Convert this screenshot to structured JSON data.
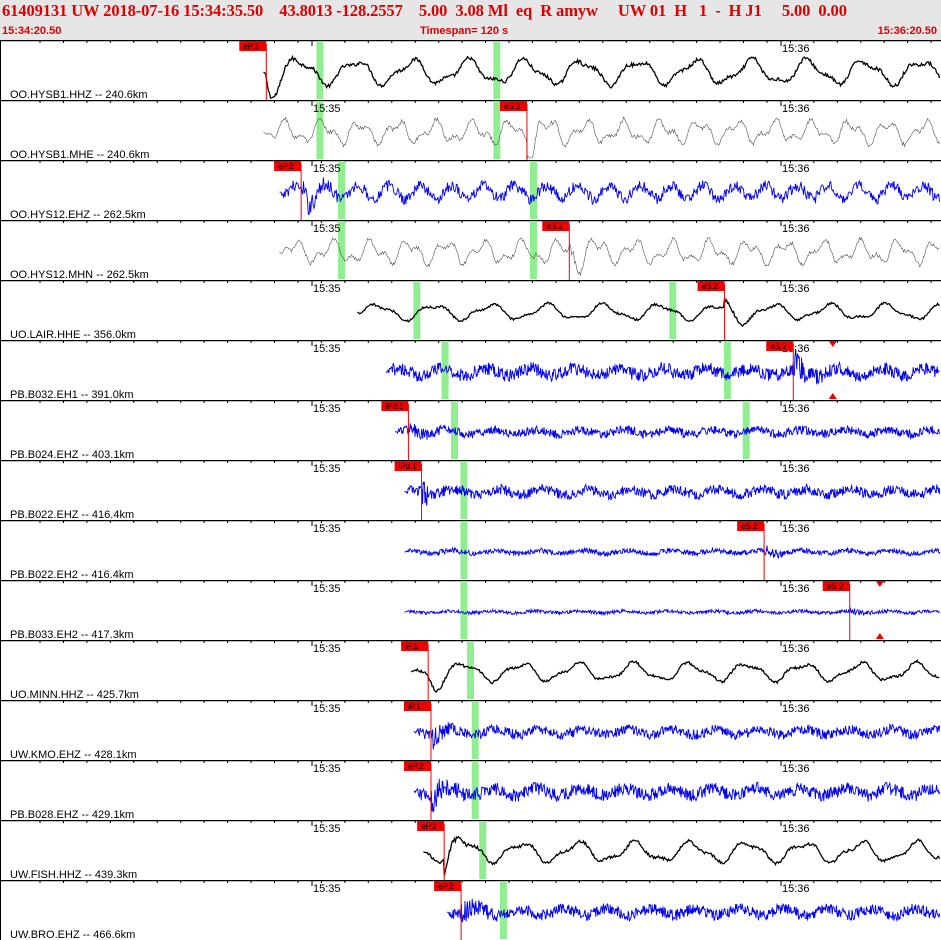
{
  "header": {
    "event_line": "61409131 UW 2018-07-16 15:34:35.50    43.8013 -128.2557    5.00  3.08 Ml  eq  R amyw     UW 01  H   1  -  H J1     5.00  0.00",
    "start_time": "15:34:20.50",
    "timespan": "Timespan= 120 s",
    "end_time": "15:36:20.50"
  },
  "time_ticks": [
    "15:35",
    "15:36"
  ],
  "colors": {
    "pick_box": "#ee0000",
    "window": "#90ee90",
    "black_trace": "#000000",
    "blue_trace": "#0000ee",
    "gray_trace": "#555555"
  },
  "channels": [
    {
      "label": "OO.HYSB1.HHZ -- 240.6km",
      "color": "black",
      "style": "smooth",
      "start": 0.28,
      "pick_label": "eP.2",
      "pick": 0.283,
      "windows": [
        0.34,
        0.528
      ],
      "tick35": false,
      "amp": 0.55
    },
    {
      "label": "OO.HYSB1.MHE -- 240.6km",
      "color": "gray",
      "style": "thin",
      "start": 0.28,
      "pick_label": "eS.2",
      "pick": 0.56,
      "windows": [
        0.34,
        0.528
      ],
      "tick35": true,
      "amp": 0.55
    },
    {
      "label": "OO.HYS12.EHZ -- 262.5km",
      "color": "blue",
      "style": "medium",
      "start": 0.297,
      "pick_label": "eP.2",
      "pick": 0.32,
      "windows": [
        0.363,
        0.567
      ],
      "tick35": true,
      "amp": 0.5
    },
    {
      "label": "OO.HYS12.MHN -- 262.5km",
      "color": "gray",
      "style": "thin",
      "start": 0.297,
      "pick_label": "eS.2",
      "pick": 0.605,
      "windows": [
        0.363,
        0.567
      ],
      "tick35": true,
      "amp": 0.55
    },
    {
      "label": "UO.LAIR.HHE -- 356.0km",
      "color": "black",
      "style": "smooth",
      "start": 0.38,
      "pick_label": "eS.2",
      "pick": 0.77,
      "windows": [
        0.443,
        0.715
      ],
      "tick35": true,
      "amp": 0.35
    },
    {
      "label": "PB.B032.EH1 -- 391.0km",
      "color": "blue",
      "style": "noisy",
      "start": 0.41,
      "pick_label": "eS.2",
      "pick": 0.843,
      "windows": [
        0.473,
        0.773
      ],
      "tick35": true,
      "amp": 0.45,
      "triangle": 0.885
    },
    {
      "label": "PB.B024.EHZ -- 403.1km",
      "color": "blue",
      "style": "noisy",
      "start": 0.42,
      "pick_label": "iPd.1",
      "pick": 0.434,
      "windows": [
        0.483,
        0.793
      ],
      "tick35": true,
      "amp": 0.3
    },
    {
      "label": "PB.B022.EHZ -- 416.4km",
      "color": "blue",
      "style": "noisy",
      "start": 0.43,
      "pick_label": "iPd.1",
      "pick": 0.448,
      "windows": [
        0.493
      ],
      "tick35": true,
      "amp": 0.35
    },
    {
      "label": "PB.B022.EH2 -- 416.4km",
      "color": "blue",
      "style": "noisy",
      "start": 0.43,
      "pick_label": "eS.2",
      "pick": 0.812,
      "windows": [
        0.493
      ],
      "tick35": true,
      "amp": 0.18
    },
    {
      "label": "PB.B033.EH2 -- 417.3km",
      "color": "blue",
      "style": "noisy",
      "start": 0.43,
      "pick_label": "eS.2",
      "pick": 0.903,
      "windows": [
        0.493
      ],
      "tick35": true,
      "amp": 0.12,
      "triangle": 0.935
    },
    {
      "label": "UO.MINN.HHZ -- 425.7km",
      "color": "black",
      "style": "smooth",
      "start": 0.437,
      "pick_label": "iP.1",
      "pick": 0.455,
      "windows": [
        0.5
      ],
      "tick35": true,
      "amp": 0.4
    },
    {
      "label": "UW.KMO.EHZ -- 428.1km",
      "color": "blue",
      "style": "noisy",
      "start": 0.44,
      "pick_label": "iP.1",
      "pick": 0.458,
      "windows": [
        0.505
      ],
      "tick35": true,
      "amp": 0.35
    },
    {
      "label": "PB.B028.EHZ -- 429.1km",
      "color": "blue",
      "style": "noisy",
      "start": 0.44,
      "pick_label": "eP.2",
      "pick": 0.458,
      "windows": [
        0.505
      ],
      "tick35": true,
      "amp": 0.45
    },
    {
      "label": "UW.FISH.HHZ -- 439.3km",
      "color": "black",
      "style": "smooth",
      "start": 0.45,
      "pick_label": "eP.2",
      "pick": 0.472,
      "windows": [
        0.513
      ],
      "tick35": true,
      "amp": 0.45
    },
    {
      "label": "UW.BRO.EHZ -- 466.6km",
      "color": "blue",
      "style": "noisy",
      "start": 0.475,
      "pick_label": "eP.2",
      "pick": 0.49,
      "windows": [
        0.535
      ],
      "tick35": true,
      "amp": 0.4
    }
  ]
}
